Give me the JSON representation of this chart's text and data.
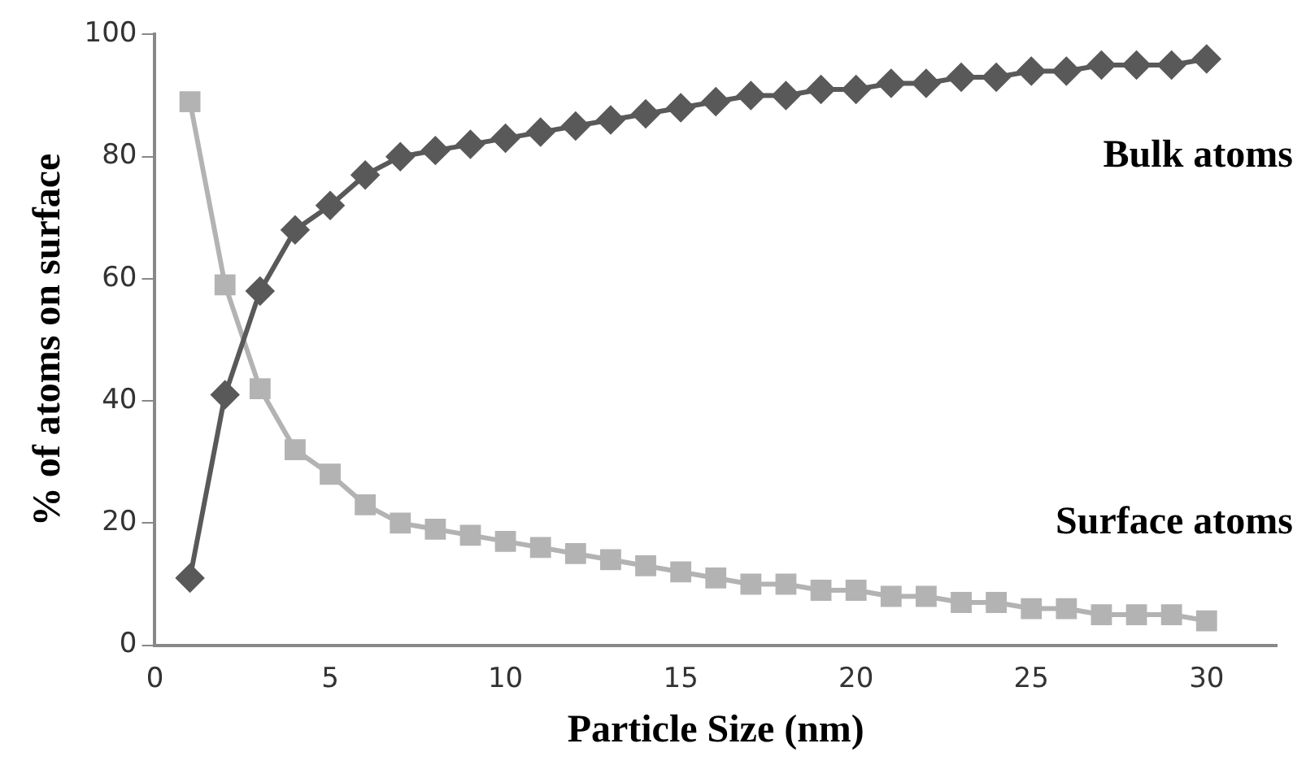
{
  "chart_data": {
    "type": "line",
    "xlabel": "Particle Size (nm)",
    "ylabel": "% of atoms on surface",
    "x": [
      1,
      2,
      3,
      4,
      5,
      6,
      7,
      8,
      9,
      10,
      11,
      12,
      13,
      14,
      15,
      16,
      17,
      18,
      19,
      20,
      21,
      22,
      23,
      24,
      25,
      26,
      27,
      28,
      29,
      30
    ],
    "series": [
      {
        "name": "Bulk atoms",
        "color": "#595959",
        "marker": "diamond",
        "values": [
          11,
          41,
          58,
          68,
          72,
          77,
          80,
          81,
          82,
          83,
          84,
          85,
          86,
          87,
          88,
          89,
          90,
          90,
          91,
          91,
          92,
          92,
          93,
          93,
          94,
          94,
          95,
          95,
          95,
          96
        ]
      },
      {
        "name": "Surface atoms",
        "color": "#b3b3b3",
        "marker": "square",
        "values": [
          89,
          59,
          42,
          32,
          28,
          23,
          20,
          19,
          18,
          17,
          16,
          15,
          14,
          13,
          12,
          11,
          10,
          10,
          9,
          9,
          8,
          8,
          7,
          7,
          6,
          6,
          5,
          5,
          5,
          4
        ]
      }
    ],
    "xlim": [
      0,
      32
    ],
    "xticks": [
      0,
      5,
      10,
      15,
      20,
      25,
      30
    ],
    "ylim": [
      0,
      100
    ],
    "yticks": [
      0,
      20,
      40,
      60,
      80,
      100
    ],
    "grid": false,
    "legend": false
  }
}
